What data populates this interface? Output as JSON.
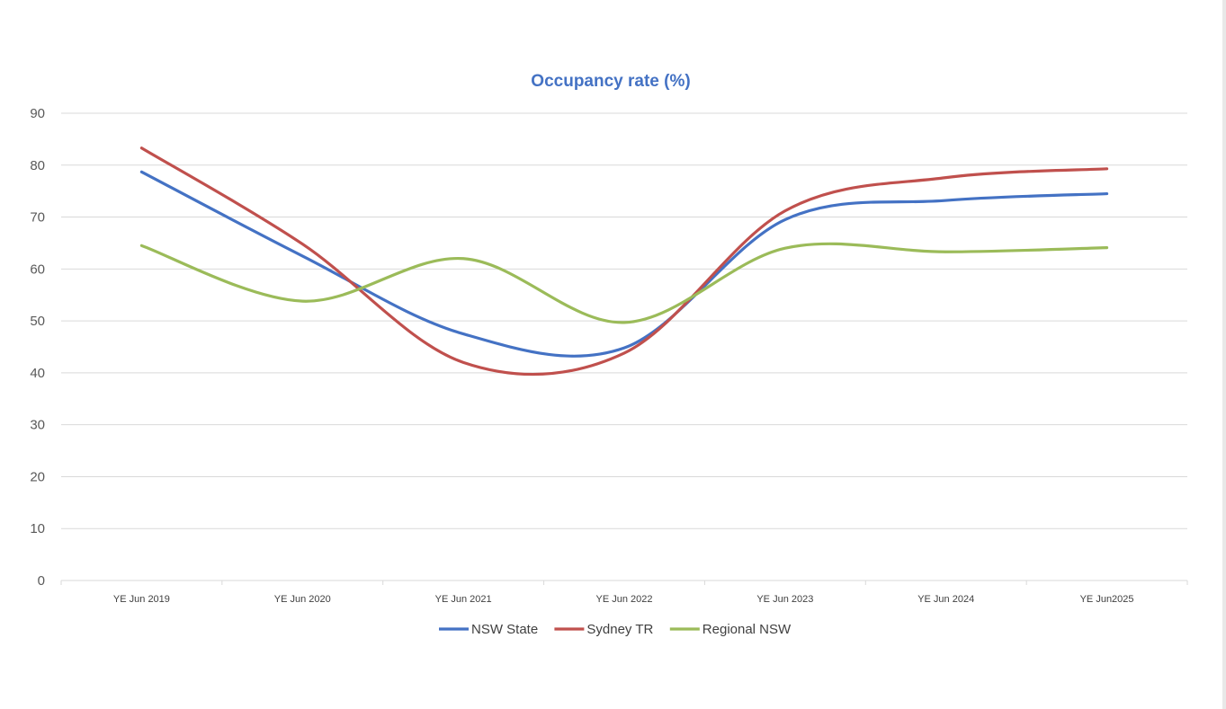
{
  "chart_data": {
    "type": "line",
    "title": "Occupancy rate (%)",
    "xlabel": "",
    "ylabel": "",
    "ylim": [
      0,
      90
    ],
    "yticks": [
      0,
      10,
      20,
      30,
      40,
      50,
      60,
      70,
      80,
      90
    ],
    "categories": [
      "YE Jun 2019",
      "YE Jun 2020",
      "YE Jun 2021",
      "YE Jun 2022",
      "YE Jun 2023",
      "YE Jun 2024",
      "YE Jun2025"
    ],
    "grid": true,
    "smooth": true,
    "legend_position": "bottom",
    "series": [
      {
        "name": "NSW State",
        "color": "#4472C4",
        "values": [
          78.7,
          62.5,
          47.5,
          44.8,
          69.5,
          73.2,
          74.5
        ]
      },
      {
        "name": "Sydney TR",
        "color": "#C0504D",
        "values": [
          83.3,
          64.8,
          42.0,
          43.8,
          71.2,
          77.6,
          79.3
        ]
      },
      {
        "name": "Regional NSW",
        "color": "#9BBB59",
        "values": [
          64.5,
          53.8,
          62.0,
          49.7,
          64.0,
          63.3,
          64.1
        ]
      }
    ],
    "title_color": "#4472C4",
    "axis_color": "#d9d9d9"
  }
}
